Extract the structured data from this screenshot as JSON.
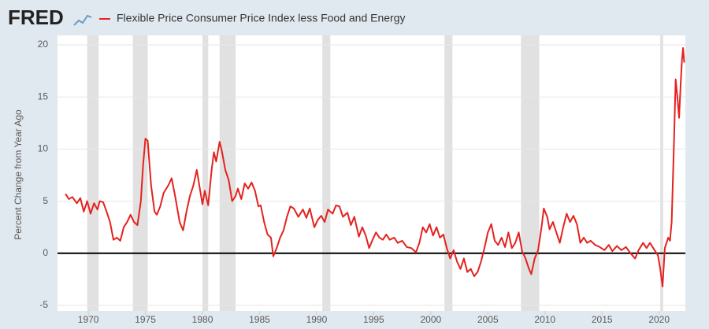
{
  "chart_data": {
    "type": "line",
    "logo": "FRED",
    "title": "Flexible Price Consumer Price Index less Food and Energy",
    "ylabel": "Percent Change from Year Ago",
    "xlim": [
      1967.3,
      2022.3
    ],
    "xticks": [
      1970,
      1975,
      1980,
      1985,
      1990,
      1995,
      2000,
      2005,
      2010,
      2015,
      2020
    ],
    "ylim": [
      -5,
      20
    ],
    "yticks": [
      -5,
      0,
      5,
      10,
      15,
      20
    ],
    "grid": true,
    "recessions": [
      [
        1969.9,
        1970.9
      ],
      [
        1973.9,
        1975.2
      ],
      [
        1980.0,
        1980.5
      ],
      [
        1981.5,
        1982.9
      ],
      [
        1990.5,
        1991.2
      ],
      [
        2001.2,
        2001.9
      ],
      [
        2007.9,
        2009.5
      ],
      [
        2020.1,
        2020.35
      ]
    ],
    "recession_color": "#e1e1e1",
    "series": [
      {
        "name": "Flexible Price Consumer Price Index less Food and Energy",
        "color": "#e4221f",
        "x": [
          1968.0,
          1968.3,
          1968.6,
          1969.0,
          1969.3,
          1969.6,
          1969.9,
          1970.2,
          1970.5,
          1970.8,
          1971.0,
          1971.3,
          1971.6,
          1971.9,
          1972.2,
          1972.5,
          1972.8,
          1973.1,
          1973.4,
          1973.7,
          1974.0,
          1974.3,
          1974.6,
          1974.8,
          1975.0,
          1975.2,
          1975.5,
          1975.8,
          1976.0,
          1976.3,
          1976.6,
          1977.0,
          1977.3,
          1977.6,
          1978.0,
          1978.3,
          1978.6,
          1978.9,
          1979.2,
          1979.5,
          1979.8,
          1980.0,
          1980.2,
          1980.5,
          1980.8,
          1981.0,
          1981.2,
          1981.5,
          1981.7,
          1982.0,
          1982.3,
          1982.6,
          1982.9,
          1983.1,
          1983.4,
          1983.7,
          1984.0,
          1984.3,
          1984.6,
          1984.9,
          1985.1,
          1985.4,
          1985.7,
          1986.0,
          1986.2,
          1986.5,
          1986.8,
          1987.1,
          1987.4,
          1987.7,
          1988.0,
          1988.4,
          1988.8,
          1989.1,
          1989.4,
          1989.8,
          1990.1,
          1990.4,
          1990.7,
          1991.0,
          1991.4,
          1991.7,
          1992.0,
          1992.3,
          1992.7,
          1993.0,
          1993.3,
          1993.7,
          1994.0,
          1994.3,
          1994.6,
          1994.9,
          1995.2,
          1995.5,
          1995.8,
          1996.1,
          1996.4,
          1996.8,
          1997.1,
          1997.5,
          1997.9,
          1998.3,
          1998.7,
          1999.0,
          1999.3,
          1999.6,
          1999.9,
          2000.2,
          2000.5,
          2000.8,
          2001.1,
          2001.4,
          2001.7,
          2002.0,
          2002.3,
          2002.6,
          2002.9,
          2003.2,
          2003.5,
          2003.8,
          2004.1,
          2004.4,
          2004.7,
          2005.0,
          2005.3,
          2005.6,
          2005.9,
          2006.2,
          2006.5,
          2006.8,
          2007.1,
          2007.4,
          2007.7,
          2008.0,
          2008.3,
          2008.6,
          2008.8,
          2009.1,
          2009.4,
          2009.7,
          2009.9,
          2010.2,
          2010.4,
          2010.7,
          2011.0,
          2011.3,
          2011.6,
          2011.9,
          2012.2,
          2012.5,
          2012.8,
          2013.1,
          2013.4,
          2013.7,
          2014.0,
          2014.4,
          2014.8,
          2015.2,
          2015.6,
          2015.9,
          2016.3,
          2016.7,
          2017.1,
          2017.5,
          2017.9,
          2018.2,
          2018.6,
          2018.9,
          2019.2,
          2019.6,
          2019.9,
          2020.1,
          2020.3,
          2020.5,
          2020.8,
          2020.95,
          2021.1,
          2021.3,
          2021.45,
          2021.6,
          2021.75,
          2021.9,
          2022.0,
          2022.1,
          2022.2
        ],
        "values": [
          5.7,
          5.2,
          5.4,
          4.8,
          5.3,
          4.0,
          5.0,
          3.8,
          4.8,
          4.2,
          5.0,
          4.9,
          4.0,
          3.0,
          1.3,
          1.5,
          1.2,
          2.5,
          3.0,
          3.7,
          3.0,
          2.7,
          5.0,
          8.5,
          11.0,
          10.8,
          6.5,
          4.0,
          3.7,
          4.5,
          5.8,
          6.5,
          7.2,
          5.5,
          3.0,
          2.2,
          4.0,
          5.5,
          6.5,
          8.0,
          6.0,
          4.7,
          6.0,
          4.6,
          8.0,
          9.7,
          8.8,
          10.7,
          9.8,
          8.0,
          7.0,
          5.0,
          5.5,
          6.2,
          5.2,
          6.7,
          6.2,
          6.8,
          6.0,
          4.5,
          4.6,
          3.0,
          1.8,
          1.5,
          -0.3,
          0.5,
          1.5,
          2.2,
          3.5,
          4.5,
          4.3,
          3.5,
          4.2,
          3.4,
          4.3,
          2.5,
          3.2,
          3.6,
          3.0,
          4.2,
          3.8,
          4.6,
          4.5,
          3.5,
          3.9,
          2.7,
          3.5,
          1.6,
          2.5,
          1.7,
          0.5,
          1.3,
          2.0,
          1.5,
          1.3,
          1.8,
          1.3,
          1.5,
          1.0,
          1.2,
          0.6,
          0.5,
          0.1,
          1.0,
          2.5,
          2.0,
          2.8,
          1.7,
          2.5,
          1.5,
          1.8,
          0.5,
          -0.5,
          0.3,
          -0.8,
          -1.5,
          -0.5,
          -1.8,
          -1.5,
          -2.2,
          -1.8,
          -0.8,
          0.5,
          2.0,
          2.8,
          1.2,
          0.8,
          1.5,
          0.6,
          2.0,
          0.5,
          1.0,
          2.0,
          0.2,
          -0.5,
          -1.5,
          -2.0,
          -0.5,
          0.3,
          2.5,
          4.3,
          3.5,
          2.3,
          3.0,
          2.0,
          1.0,
          2.5,
          3.8,
          3.0,
          3.6,
          2.8,
          1.0,
          1.5,
          1.0,
          1.2,
          0.8,
          0.6,
          0.3,
          0.8,
          0.2,
          0.7,
          0.3,
          0.6,
          0.0,
          -0.5,
          0.3,
          1.0,
          0.5,
          1.0,
          0.3,
          -0.2,
          -1.5,
          -3.2,
          0.5,
          1.5,
          1.2,
          3.0,
          10.5,
          16.7,
          15.0,
          13.0,
          16.5,
          18.5,
          19.7,
          18.3
        ]
      }
    ]
  }
}
